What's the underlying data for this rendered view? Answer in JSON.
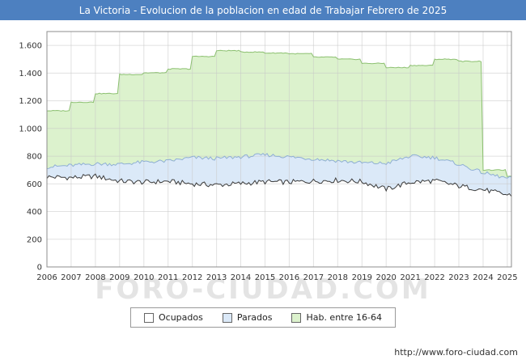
{
  "page": {
    "watermark": "FORO-CIUDAD.COM",
    "footer_url": "http://www.foro-ciudad.com"
  },
  "chart_data": {
    "type": "area",
    "title": "La Victoria - Evolucion de la poblacion en edad de Trabajar Febrero de 2025",
    "subtitle": "",
    "legend_position": "bottom",
    "grid": true,
    "x_domain": [
      2006,
      2025.17
    ],
    "ylim": [
      0,
      1700
    ],
    "x_tick_years": [
      2006,
      2007,
      2008,
      2009,
      2010,
      2011,
      2012,
      2013,
      2014,
      2015,
      2016,
      2017,
      2018,
      2019,
      2020,
      2021,
      2022,
      2023,
      2024,
      2025
    ],
    "x_tick_labels": [
      "2006",
      "2007",
      "2008",
      "2009",
      "2010",
      "2011",
      "2012",
      "2013",
      "2014",
      "2015",
      "2016",
      "2017",
      "2018",
      "2019",
      "2020",
      "2021",
      "2022",
      "2023",
      "2024",
      "2025"
    ],
    "y_tick_values": [
      0,
      200,
      400,
      600,
      800,
      1000,
      1200,
      1400,
      1600
    ],
    "y_tick_labels": [
      "0",
      "200",
      "400",
      "600",
      "800",
      "1.000",
      "1.200",
      "1.400",
      "1.600"
    ],
    "values_note": "Values are approximate plotted top-line positions per year (monthly series in source); areas are drawn overlapping/stacked with Hab. 16-64 behind, Parados middle, Ocupados front.",
    "series": [
      {
        "name": "Ocupados",
        "fill": "#ffffff",
        "stroke": "#3a3a3a",
        "interp": "linear",
        "noise": 18,
        "values": [
          650,
          645,
          655,
          620,
          612,
          618,
          600,
          592,
          602,
          615,
          612,
          620,
          626,
          616,
          562,
          612,
          622,
          585,
          558,
          520
        ]
      },
      {
        "name": "Parados",
        "fill": "#dbe9f8",
        "stroke": "#8fafd4",
        "interp": "linear",
        "noise": 13,
        "values": [
          722,
          733,
          745,
          742,
          758,
          764,
          790,
          783,
          795,
          810,
          795,
          780,
          766,
          752,
          748,
          800,
          790,
          742,
          680,
          640
        ]
      },
      {
        "name": "Hab. entre 16-64",
        "fill": "#dcf2cd",
        "stroke": "#8cc070",
        "interp": "step",
        "noise": 3,
        "values": [
          1128,
          1190,
          1252,
          1390,
          1402,
          1430,
          1520,
          1562,
          1552,
          1545,
          1540,
          1515,
          1500,
          1470,
          1440,
          1455,
          1500,
          1485,
          700,
          650
        ]
      }
    ],
    "colors": {
      "title_bar": "#4d80c0",
      "grid_line": "#c9c9c9",
      "plot_border": "#8c8c8c",
      "tick_text": "#333333"
    }
  }
}
